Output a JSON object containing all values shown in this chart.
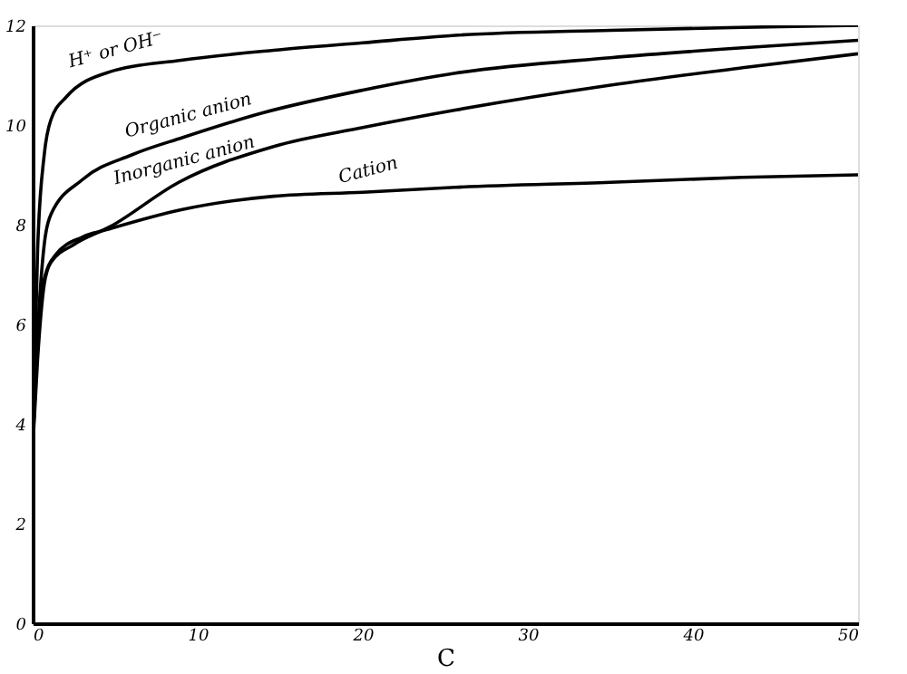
{
  "chart_data": {
    "type": "line",
    "xlabel": "C",
    "xlim": [
      0,
      50
    ],
    "xticks": [
      0,
      10,
      20,
      30,
      40,
      50
    ],
    "ylim": [
      0,
      12
    ],
    "yticks": [
      0,
      2,
      4,
      6,
      8,
      10,
      12
    ],
    "grid": false,
    "marker": "none",
    "line_style": "solid",
    "series": [
      {
        "color": "#000000",
        "x": [
          0,
          0.3,
          0.7,
          1.1,
          2,
          4.7,
          9,
          14.6,
          20,
          25.6,
          35,
          43,
          50
        ],
        "values": [
          3.5,
          7.5,
          9.4,
          10.1,
          10.55,
          11.07,
          11.3,
          11.5,
          11.65,
          11.8,
          11.9,
          11.96,
          12.0
        ]
      },
      {
        "color": "#000000",
        "x": [
          0,
          0.3,
          0.7,
          1.1,
          3,
          6,
          9.1,
          14,
          20,
          25.6,
          35,
          43,
          50
        ],
        "values": [
          3.5,
          5.8,
          7.6,
          8.2,
          8.9,
          9.4,
          9.75,
          10.25,
          10.7,
          11.04,
          11.35,
          11.55,
          11.7
        ]
      },
      {
        "color": "#000000",
        "x": [
          0,
          0.3,
          0.7,
          1.1,
          2.5,
          4.7,
          8.85,
          14.6,
          20,
          25.6,
          35,
          43,
          50
        ],
        "values": [
          3.5,
          5.3,
          6.8,
          7.24,
          7.6,
          7.96,
          8.85,
          9.57,
          9.95,
          10.3,
          10.8,
          11.15,
          11.43
        ]
      },
      {
        "color": "#000000",
        "x": [
          0,
          0.3,
          0.7,
          1.4,
          3,
          4.7,
          9,
          14.6,
          20,
          25.6,
          35,
          43,
          50
        ],
        "values": [
          3.5,
          5.8,
          6.9,
          7.4,
          7.75,
          7.92,
          8.3,
          8.57,
          8.65,
          8.75,
          8.85,
          8.95,
          9.0
        ]
      }
    ],
    "annotations": [
      {
        "text": "H⁺ or OH⁻",
        "x": 4.7,
        "y": 11.07
      },
      {
        "text": "Organic anion",
        "x": 9.1,
        "y": 9.75
      },
      {
        "text": "Inorganic anion",
        "x": 8.85,
        "y": 8.85
      },
      {
        "text": "Cation",
        "x": 20,
        "y": 8.65
      }
    ]
  }
}
